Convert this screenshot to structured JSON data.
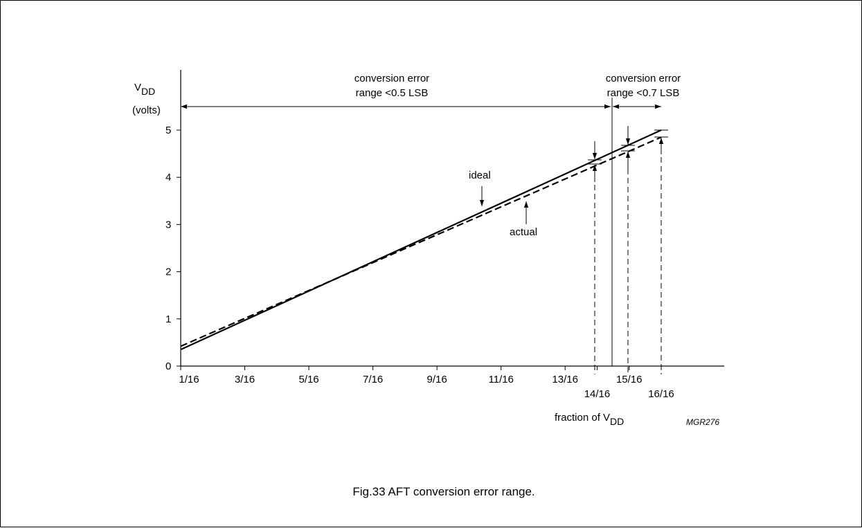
{
  "chart_data": {
    "type": "line",
    "y_axis_label": {
      "main": "V",
      "sub": "DD",
      "unit": "(volts)"
    },
    "x_axis_label": {
      "main": "fraction of V",
      "sub": "DD"
    },
    "y_ticks": [
      "0",
      "1",
      "2",
      "3",
      "4",
      "5"
    ],
    "x_ticks_upper": [
      "1/16",
      "3/16",
      "5/16",
      "7/16",
      "9/16",
      "11/16",
      "13/16",
      "15/16"
    ],
    "x_ticks_lower": [
      "14/16",
      "16/16"
    ],
    "ylim": [
      0,
      6
    ],
    "x_ticks_numeric": [
      1,
      3,
      5,
      7,
      9,
      11,
      13,
      14,
      15,
      16
    ],
    "series": [
      {
        "name": "ideal",
        "style": "solid",
        "x": [
          1,
          16
        ],
        "y": [
          0.35,
          5.0
        ]
      },
      {
        "name": "actual",
        "style": "dashed",
        "x": [
          1,
          16
        ],
        "y": [
          0.42,
          4.85
        ]
      }
    ],
    "annotations": {
      "range1": [
        "conversion error",
        "range <0.5 LSB"
      ],
      "range2": [
        "conversion error",
        "range <0.7 LSB"
      ],
      "code": "MGR276"
    }
  },
  "caption": "Fig.33  AFT conversion error range.",
  "colors": {
    "line": "#000000",
    "background": "#ffffff"
  }
}
